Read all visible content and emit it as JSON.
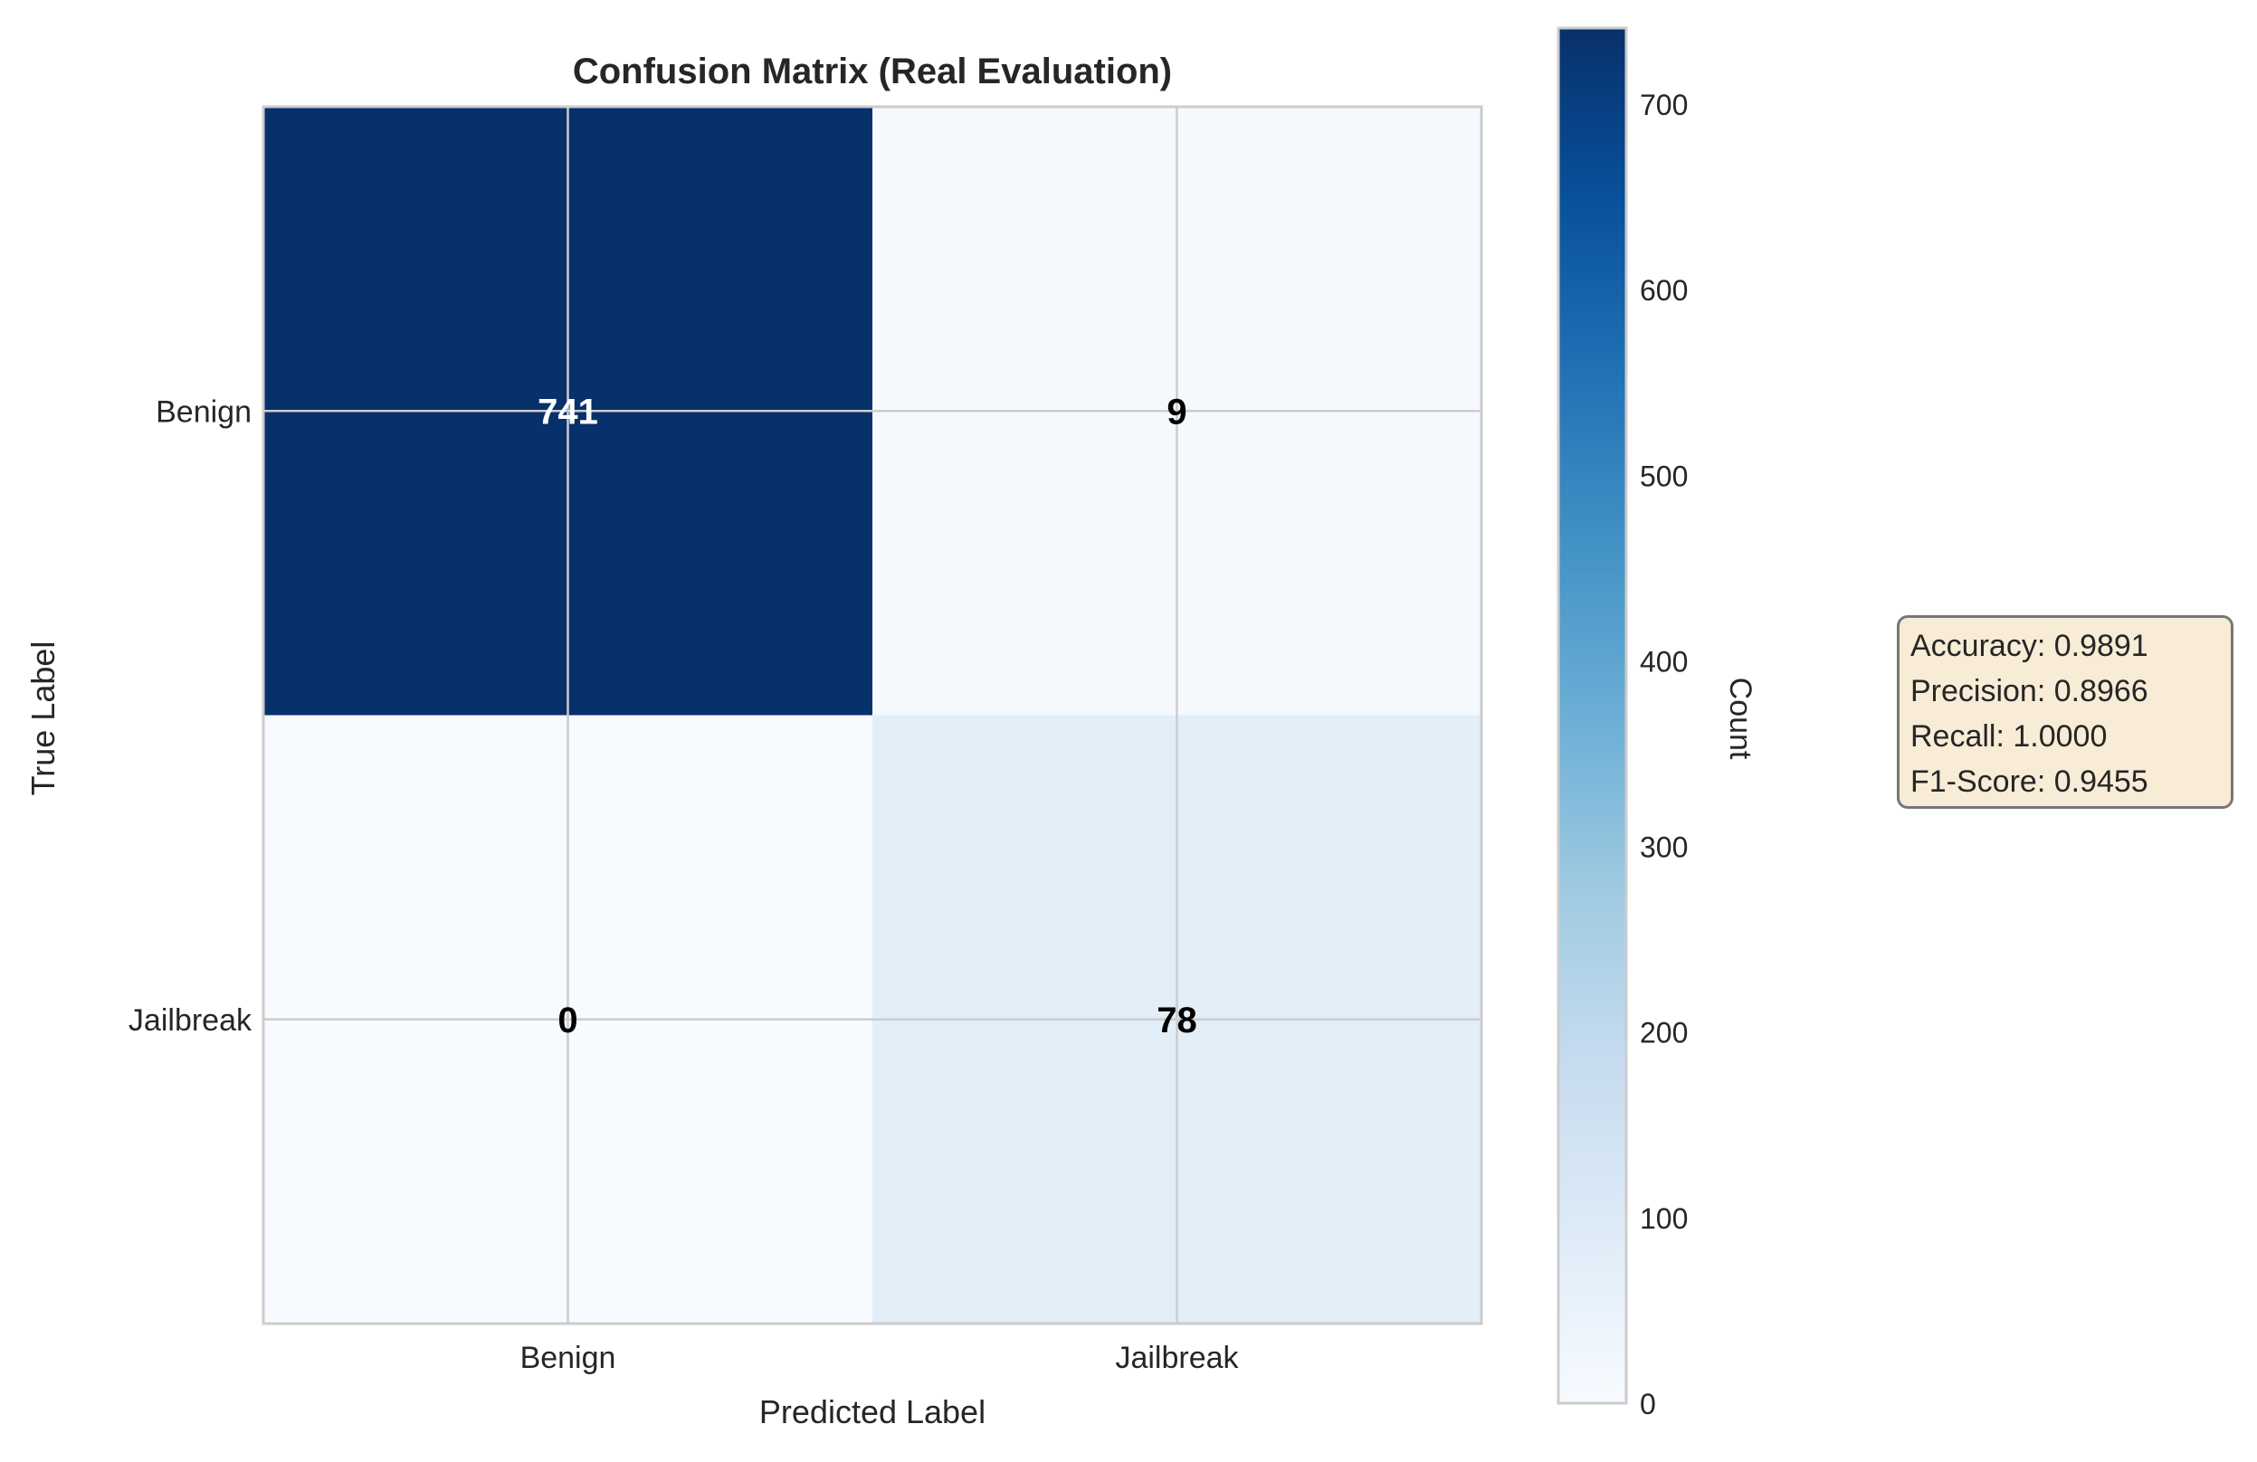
{
  "chart_data": {
    "type": "heatmap",
    "title": "Confusion Matrix (Real Evaluation)",
    "xlabel": "Predicted Label",
    "ylabel": "True Label",
    "x_categories": [
      "Benign",
      "Jailbreak"
    ],
    "y_categories": [
      "Benign",
      "Jailbreak"
    ],
    "values": [
      [
        741,
        9
      ],
      [
        0,
        78
      ]
    ],
    "colormap": "Blues",
    "grid": true,
    "colorbar": {
      "label": "Count",
      "range": [
        0,
        741
      ],
      "ticks": [
        0,
        100,
        200,
        300,
        400,
        500,
        600,
        700
      ]
    },
    "annotation": {
      "lines": [
        "Accuracy: 0.9891",
        "Precision: 0.8966",
        "Recall: 1.0000",
        "F1-Score: 0.9455"
      ],
      "background": "#f8ecd6"
    }
  }
}
